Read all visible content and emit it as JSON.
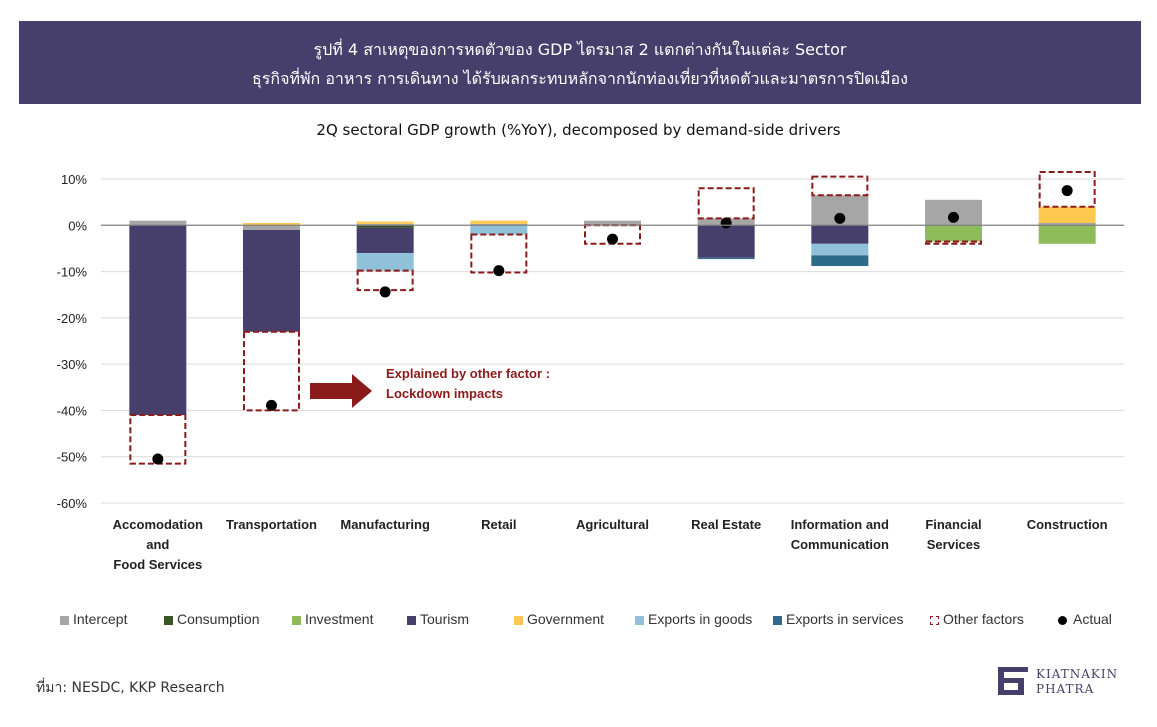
{
  "banner": {
    "line1": "รูปที่ 4 สาเหตุของการหดตัวของ GDP ไตรมาส 2 แตกต่างกันในแต่ละ Sector",
    "line2": "ธุรกิจที่พัก อาหาร การเดินทาง ได้รับผลกระทบหลักจากนักท่องเที่ยวที่หดตัวและมาตรการปิดเมือง",
    "background": "#463f6b"
  },
  "annotation": {
    "line1": "Explained by other factor :",
    "line2": "Lockdown impacts",
    "color": "#8b1a1a"
  },
  "source": "ที่มา: NESDC, KKP Research",
  "logo": {
    "line1": "KIATNAKIN",
    "line2": "PHATRA"
  },
  "chart_data": {
    "type": "bar",
    "subtype": "stacked waterfall",
    "title": "2Q sectoral GDP growth (%YoY), decomposed by demand-side drivers",
    "ylim": [
      -60,
      10
    ],
    "yticks": [
      10,
      0,
      -10,
      -20,
      -30,
      -40,
      -50,
      -60
    ],
    "ytick_labels": [
      "10%",
      "0%",
      "-10%",
      "-20%",
      "-30%",
      "-40%",
      "-50%",
      "-60%"
    ],
    "grid": true,
    "legend_position": "bottom",
    "categories": [
      [
        "Accomodation",
        "and",
        "Food Services"
      ],
      [
        "Transportation"
      ],
      [
        "Manufacturing"
      ],
      [
        "Retail"
      ],
      [
        "Agricultural"
      ],
      [
        "Real Estate"
      ],
      [
        "Information and",
        "Communication"
      ],
      [
        "Financial",
        "Services"
      ],
      [
        "Construction"
      ]
    ],
    "series": [
      {
        "name": "Intercept",
        "color": "#a6a6a6",
        "values": [
          1.0,
          -1.0,
          0.3,
          0.3,
          1.0,
          1.5,
          6.5,
          5.5,
          0.5
        ]
      },
      {
        "name": "Consumption",
        "color": "#375623",
        "values": [
          0,
          0,
          -0.5,
          0,
          0,
          0,
          0,
          0,
          0
        ]
      },
      {
        "name": "Investment",
        "color": "#8fbc5b",
        "values": [
          0,
          0,
          0,
          0,
          0,
          0,
          0,
          -3.5,
          -4.0
        ]
      },
      {
        "name": "Tourism",
        "color": "#463f6b",
        "values": [
          -41.0,
          -22.0,
          -5.5,
          0,
          0,
          -7.0,
          -4.0,
          0,
          0
        ]
      },
      {
        "name": "Government",
        "color": "#ffc94f",
        "values": [
          0,
          0.5,
          0.5,
          0.7,
          0,
          0,
          0,
          0,
          3.5
        ]
      },
      {
        "name": "Exports in goods",
        "color": "#8fc2d8",
        "values": [
          0,
          0,
          -3.8,
          -2.0,
          0,
          0,
          -2.5,
          0,
          0
        ]
      },
      {
        "name": "Exports in services",
        "color": "#2e6a8a",
        "values": [
          0,
          0,
          0,
          0,
          0,
          -0.3,
          -2.3,
          0,
          0
        ]
      },
      {
        "name": "Other factors",
        "color": "#8b1a1a",
        "values": [
          -10.5,
          -17.0,
          -4.2,
          -8.2,
          -4.0,
          6.5,
          4.0,
          -0.5,
          7.5
        ]
      },
      {
        "name": "Actual",
        "color": "#000000",
        "values": [
          -50.5,
          -38.9,
          -14.4,
          -9.8,
          -3.0,
          0.5,
          1.5,
          1.7,
          7.5
        ]
      }
    ]
  }
}
